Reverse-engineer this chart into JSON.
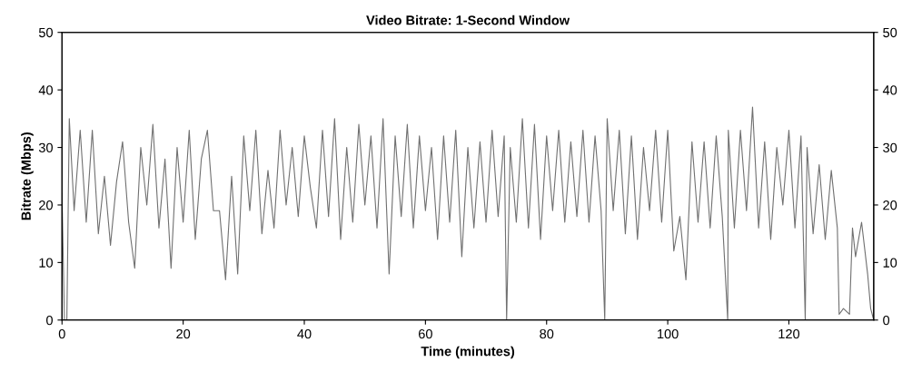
{
  "chart_data": {
    "type": "line",
    "title": "Video Bitrate: 1-Second Window",
    "xlabel": "Time (minutes)",
    "ylabel": "Bitrate (Mbps)",
    "xlim": [
      0,
      134
    ],
    "xticks": [
      0,
      20,
      40,
      60,
      80,
      100,
      120
    ],
    "ylim": [
      0,
      50
    ],
    "yticks": [
      0,
      10,
      20,
      30,
      40,
      50
    ],
    "y2lim": [
      0,
      50
    ],
    "y2ticks": [
      0,
      10,
      20,
      30,
      40,
      50
    ],
    "grid": false,
    "legend": false,
    "series": [
      {
        "color": "#707070",
        "x": [
          0,
          0.4,
          0.8,
          1.2,
          2,
          3,
          4,
          5,
          6,
          7,
          8,
          9,
          10,
          11,
          12,
          13,
          14,
          15,
          16,
          17,
          18,
          19,
          20,
          21,
          22,
          23,
          24,
          25,
          26,
          27,
          28,
          29,
          30,
          31,
          32,
          33,
          34,
          35,
          36,
          37,
          38,
          39,
          40,
          41,
          42,
          43,
          44,
          45,
          46,
          47,
          48,
          49,
          50,
          51,
          52,
          53,
          54,
          55,
          56,
          57,
          58,
          59,
          60,
          61,
          62,
          63,
          64,
          65,
          66,
          67,
          68,
          69,
          70,
          71,
          72,
          73,
          73.4,
          74,
          75,
          76,
          77,
          78,
          79,
          80,
          81,
          82,
          83,
          84,
          85,
          86,
          87,
          88,
          89,
          89.6,
          90,
          91,
          92,
          93,
          94,
          95,
          96,
          97,
          98,
          99,
          100,
          101,
          102,
          103,
          104,
          105,
          106,
          107,
          108,
          109,
          109.9,
          110,
          111,
          112,
          113,
          114,
          115,
          116,
          117,
          118,
          119,
          120,
          121,
          122,
          122.7,
          123,
          124,
          125,
          126,
          127,
          128,
          128.3,
          129,
          130,
          130.5,
          131,
          132,
          133,
          133.5,
          134
        ],
        "values": [
          22,
          0,
          0,
          35,
          19,
          33,
          17,
          33,
          15,
          25,
          13,
          24,
          31,
          17,
          9,
          30,
          20,
          34,
          16,
          28,
          9,
          30,
          17,
          33,
          14,
          28,
          33,
          19,
          19,
          7,
          25,
          8,
          32,
          19,
          33,
          15,
          26,
          16,
          33,
          20,
          30,
          18,
          32,
          23,
          16,
          33,
          18,
          35,
          14,
          30,
          17,
          34,
          20,
          32,
          16,
          35,
          8,
          32,
          18,
          34,
          16,
          32,
          19,
          30,
          14,
          32,
          17,
          33,
          11,
          30,
          16,
          31,
          17,
          33,
          18,
          32,
          0,
          30,
          17,
          35,
          16,
          34,
          14,
          32,
          19,
          33,
          17,
          31,
          18,
          33,
          17,
          32,
          19,
          0,
          35,
          19,
          33,
          15,
          32,
          14,
          30,
          19,
          33,
          17,
          33,
          12,
          18,
          7,
          31,
          17,
          31,
          16,
          32,
          18,
          0,
          33,
          16,
          33,
          19,
          37,
          16,
          31,
          14,
          30,
          20,
          33,
          16,
          32,
          0,
          30,
          15,
          27,
          14,
          26,
          16,
          1,
          2,
          1,
          16,
          11,
          17,
          8,
          2,
          0
        ]
      }
    ]
  }
}
